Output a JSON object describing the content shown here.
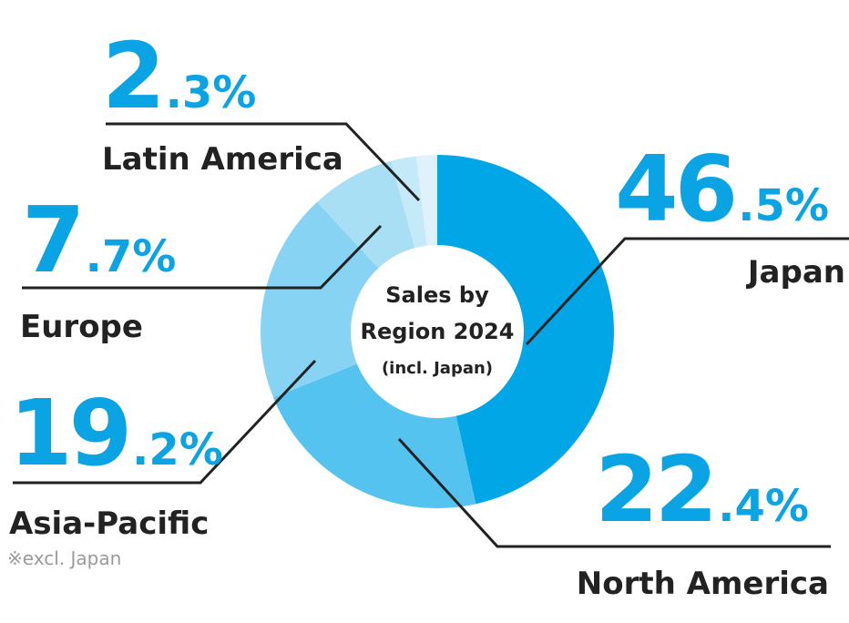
{
  "chart_data": {
    "type": "pie",
    "title": "Sales by\nRegion 2024",
    "subtitle": "(incl. Japan)",
    "colors": [
      "#00a6e6",
      "#55c3ef",
      "#87d3f3",
      "#a8dff5",
      "#c4e9f8",
      "#dff2fb"
    ],
    "slices": [
      {
        "name": "Japan",
        "value": 46.5,
        "int": "46",
        "dec": ".5%"
      },
      {
        "name": "North America",
        "value": 22.4,
        "int": "22",
        "dec": ".4%"
      },
      {
        "name": "Asia-Pacific",
        "value": 19.2,
        "int": "19",
        "dec": ".2%",
        "note": "※excl. Japan"
      },
      {
        "name": "Europe",
        "value": 7.7,
        "int": "7",
        "dec": ".7%"
      },
      {
        "name": "Latin America",
        "value": 2.3,
        "int": "2",
        "dec": ".3%"
      },
      {
        "name": "",
        "value": 1.9
      }
    ]
  }
}
